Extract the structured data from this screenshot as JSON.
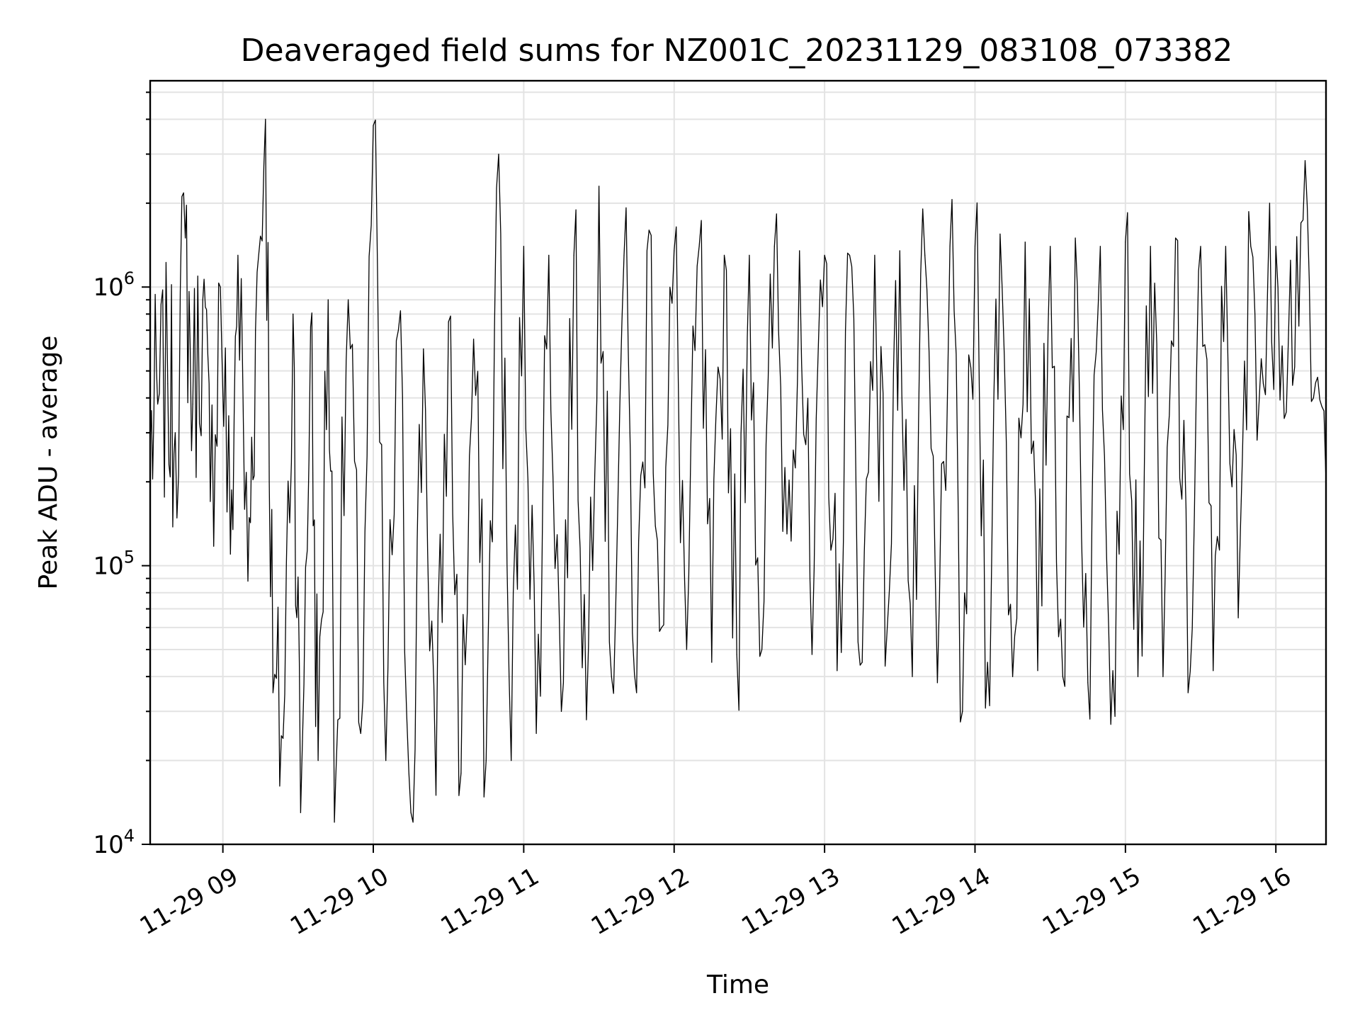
{
  "chart_data": {
    "type": "line",
    "title": "Deaveraged field sums for NZ001C_20231129_083108_073382",
    "xlabel": "Time",
    "ylabel": "Peak ADU - average",
    "yscale": "log",
    "ylim": [
      10000,
      5500000
    ],
    "xlim": [
      "2023-11-29 08:31",
      "2023-11-29 16:20"
    ],
    "grid": true,
    "line_color": "#000000",
    "x_tick_labels": [
      "11-29 09",
      "11-29 10",
      "11-29 11",
      "11-29 12",
      "11-29 13",
      "11-29 14",
      "11-29 15",
      "11-29 16"
    ],
    "y_tick_labels": [
      {
        "base": "10",
        "exp": "4",
        "value": 10000
      },
      {
        "base": "10",
        "exp": "5",
        "value": 100000
      },
      {
        "base": "10",
        "exp": "6",
        "value": 1000000
      }
    ],
    "series": [
      {
        "x": [
          "08:31",
          "08:34",
          "08:38",
          "08:41",
          "08:45",
          "08:48",
          "08:52",
          "08:55",
          "08:59",
          "09:03",
          "09:06",
          "09:10",
          "09:13",
          "09:17",
          "09:20",
          "09:24",
          "09:28",
          "09:31",
          "09:35",
          "09:38",
          "09:42",
          "09:45",
          "09:50",
          "09:55",
          "10:00",
          "10:05",
          "10:10",
          "10:15",
          "10:20",
          "10:25",
          "10:30",
          "10:35",
          "10:40",
          "10:45",
          "10:50",
          "10:55",
          "11:00",
          "11:05",
          "11:10",
          "11:15",
          "11:20",
          "11:25",
          "11:30",
          "11:35",
          "11:40",
          "11:45",
          "11:50",
          "11:55",
          "12:00",
          "12:05",
          "12:10",
          "12:15",
          "12:20",
          "12:25",
          "12:30",
          "12:35",
          "12:40",
          "12:45",
          "12:50",
          "12:55",
          "13:00",
          "13:05",
          "13:10",
          "13:15",
          "13:20",
          "13:25",
          "13:30",
          "13:35",
          "13:40",
          "13:45",
          "13:50",
          "13:55",
          "14:00",
          "14:05",
          "14:10",
          "14:15",
          "14:20",
          "14:25",
          "14:30",
          "14:35",
          "14:40",
          "14:45",
          "14:50",
          "14:55",
          "15:00",
          "15:05",
          "15:10",
          "15:15",
          "15:20",
          "15:25",
          "15:30",
          "15:35",
          "15:40",
          "15:45",
          "15:50",
          "15:55",
          "16:00",
          "16:05",
          "16:10",
          "16:15",
          "16:20"
        ],
        "values": [
          280000,
          380000,
          450000,
          300000,
          1500000,
          380000,
          900000,
          170000,
          1000000,
          110000,
          1300000,
          88000,
          700000,
          4000000,
          35000,
          24000,
          800000,
          13000,
          720000,
          20000,
          900000,
          17000,
          900000,
          25000,
          3800000,
          20000,
          700000,
          13000,
          600000,
          15000,
          750000,
          18000,
          650000,
          20000,
          3000000,
          20000,
          1400000,
          25000,
          1300000,
          30000,
          1300000,
          28000,
          2300000,
          40000,
          1300000,
          35000,
          1600000,
          60000,
          1350000,
          50000,
          1400000,
          45000,
          1300000,
          48000,
          1300000,
          50000,
          1400000,
          130000,
          1350000,
          48000,
          1300000,
          42000,
          1300000,
          45000,
          1300000,
          60000,
          1350000,
          40000,
          1300000,
          38000,
          1400000,
          30000,
          1400000,
          45000,
          1550000,
          40000,
          1450000,
          42000,
          1400000,
          40000,
          1500000,
          38000,
          1400000,
          42000,
          1450000,
          40000,
          1400000,
          40000,
          1500000,
          35000,
          1400000,
          42000,
          1400000,
          65000,
          1400000,
          450000,
          1400000,
          650000,
          1700000,
          400000,
          200000
        ]
      }
    ]
  }
}
